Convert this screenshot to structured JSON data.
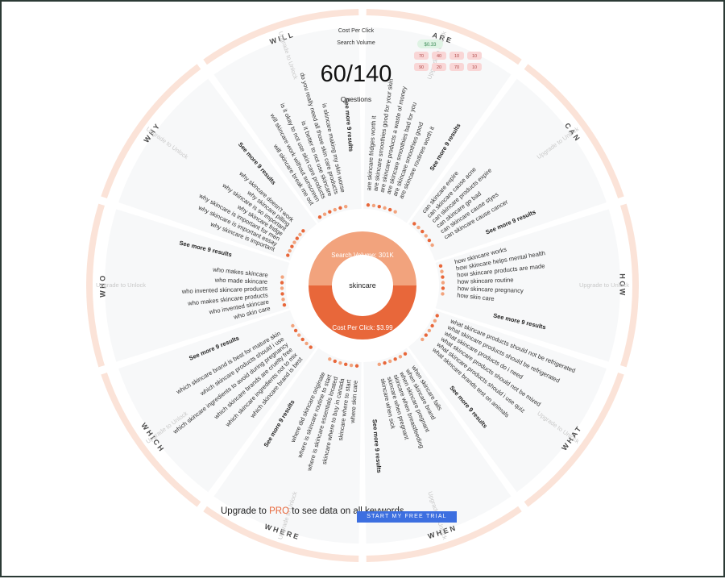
{
  "legend": {
    "cpc_label": "Cost Per Click",
    "sv_label": "Search Volume"
  },
  "counter": {
    "value": "60/140",
    "label": "Questions"
  },
  "center": {
    "keyword": "skincare",
    "search_volume_label": "Search Volume: 301K",
    "cpc_label": "Cost Per Click: $3.99"
  },
  "cta": {
    "prefix": "Upgrade to ",
    "pro": "PRO",
    "suffix": " to see data on all keywords",
    "button": "START MY FREE TRIAL"
  },
  "colors": {
    "accent": "#e8673a",
    "accent_light": "#f2a37d",
    "ring": "#fbe3d8",
    "cta_button": "#3d6fe0"
  },
  "chart_data": {
    "type": "radial",
    "keyword": "skincare",
    "metrics": {
      "cpc_example": "$0.33",
      "sv_values": [
        "70",
        "40",
        "10",
        "10",
        "90",
        "20",
        "70",
        "10"
      ]
    },
    "see_more_label": "See more 9 results",
    "unlock_label": "Upgrade to Unlock",
    "segments": [
      {
        "name": "ARE",
        "questions": [
          "are skincare fridges worth it",
          "are skincare smoothies good for your skin",
          "are skincare products a waste of money",
          "are skincare smoothies bad for you",
          "are skincare smoothies good",
          "are skincare routines worth it"
        ]
      },
      {
        "name": "CAN",
        "questions": [
          "can skincare expire",
          "can skincare cause acne",
          "can skincare products expire",
          "can skincare go bad",
          "can skincare cause styes",
          "can skincare cause cancer"
        ]
      },
      {
        "name": "HOW",
        "questions": [
          "how skincare works",
          "how skincare helps mental health",
          "how skincare products are made",
          "how skincare routine",
          "how skincare pregnancy",
          "how skin care"
        ]
      },
      {
        "name": "WHAT",
        "questions": [
          "what skincare products should not be refrigerated",
          "what skincare products should be refrigerated",
          "what skincare products do i need",
          "what skincare products should not be mixed",
          "what skincare products should i use quiz",
          "what skincare brands test on animals"
        ]
      },
      {
        "name": "WHEN",
        "questions": [
          "when skincare fails",
          "when skincare brand",
          "when skincare pregnant",
          "skincare when breastfeeding",
          "skincare when pregnant",
          "skincare when sick"
        ]
      },
      {
        "name": "WHERE",
        "questions": [
          "where skin care",
          "skincare where to start",
          "skincare where to buy in canada",
          "where is skincare essentials located",
          "where is skincare routine to start",
          "where did skincare originate"
        ]
      },
      {
        "name": "WHICH",
        "questions": [
          "which skincare brand is best",
          "which skincare ingredients not to mix",
          "which skincare brands are cruelty free",
          "which skincare ingredients to avoid during pregnancy",
          "which skincare products should i use",
          "which skincare brand is best for mature skin"
        ]
      },
      {
        "name": "WHO",
        "questions": [
          "who skin care",
          "who invented skincare",
          "who makes skincare products",
          "who invented skincare products",
          "who made skincare",
          "who makes skincare"
        ]
      },
      {
        "name": "WHY",
        "questions": [
          "why skincare is important",
          "why skincare is important essay",
          "why skincare is important for men",
          "why skincare fridge",
          "why skincare is so important",
          "why skincare pilling",
          "why skincare doesn't work"
        ]
      },
      {
        "name": "WILL",
        "questions": [
          "will skincare break me out",
          "will skincare work without sunscreen",
          "is it okay to not use skin care products",
          "is it better to not use skincare",
          "do you really need all those skin care products",
          "is skincare making my skin worse"
        ]
      }
    ]
  }
}
